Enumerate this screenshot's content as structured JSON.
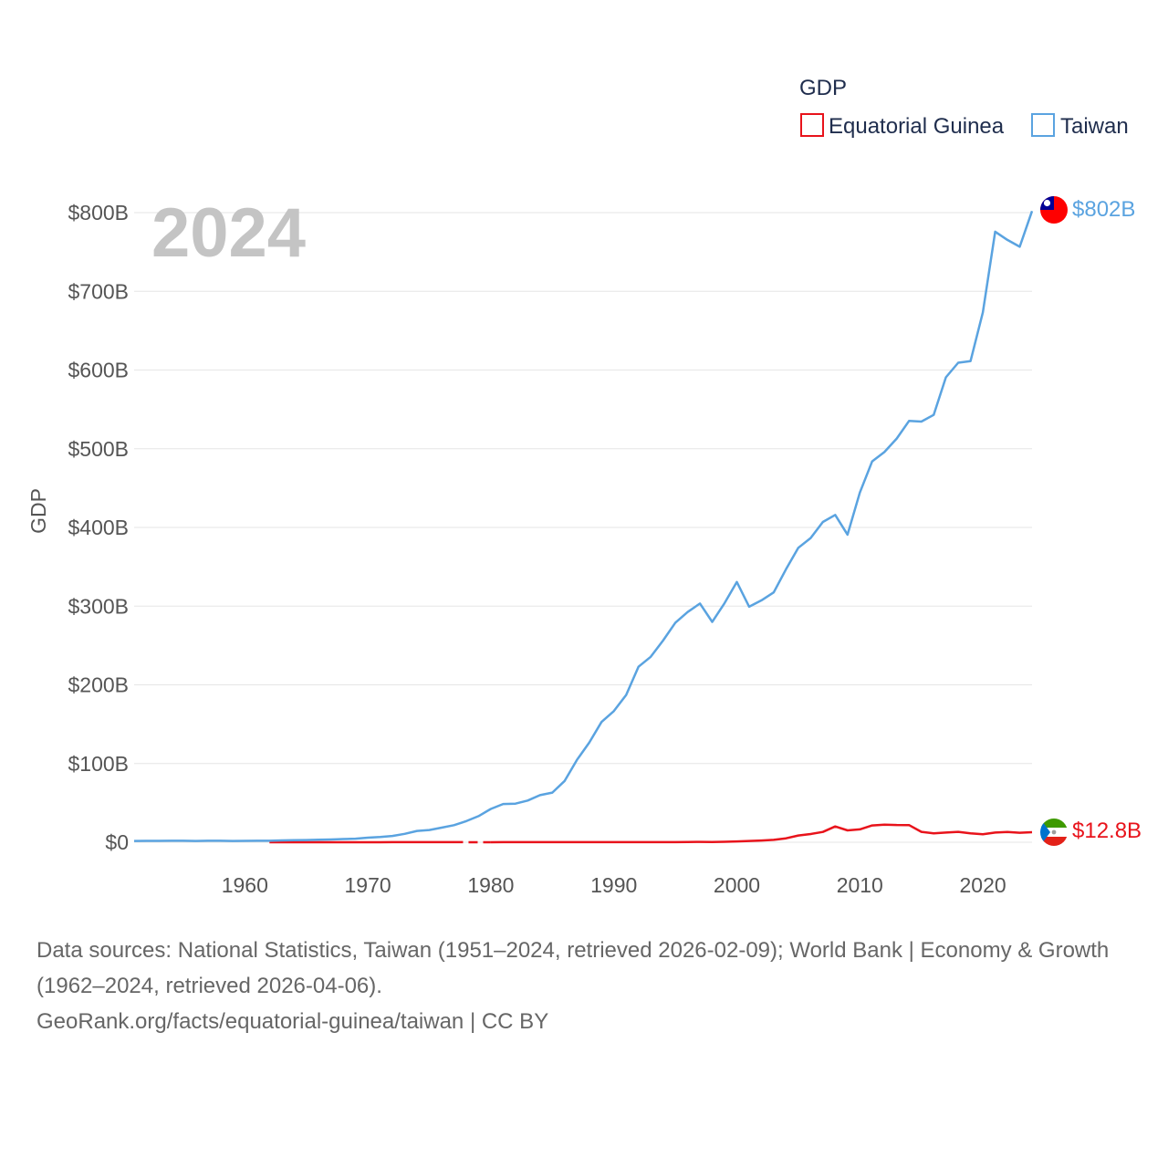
{
  "chart_data": {
    "type": "line",
    "title": "GDP",
    "ylabel": "GDP",
    "xlabel": "",
    "year_label": "2024",
    "xlim": [
      1951,
      2024
    ],
    "ylim": [
      0,
      800
    ],
    "x_ticks": [
      1960,
      1970,
      1980,
      1990,
      2000,
      2010,
      2020
    ],
    "x_tick_labels": [
      "1960",
      "1970",
      "1980",
      "1990",
      "2000",
      "2010",
      "2020"
    ],
    "y_ticks": [
      0,
      100,
      200,
      300,
      400,
      500,
      600,
      700,
      800
    ],
    "y_tick_labels": [
      "$0",
      "$100B",
      "$200B",
      "$300B",
      "$400B",
      "$500B",
      "$600B",
      "$700B",
      "$800B"
    ],
    "legend": {
      "title": "GDP",
      "position": "top-right"
    },
    "series": [
      {
        "name": "Equatorial Guinea",
        "color": "#e8131b",
        "end_label": "$12.8B",
        "flag": "equatorial-guinea-flag-icon",
        "x": [
          1962,
          1963,
          1964,
          1965,
          1966,
          1967,
          1968,
          1969,
          1970,
          1971,
          1972,
          1973,
          1974,
          1975,
          1976,
          1977,
          1978,
          1979,
          1980,
          1981,
          1982,
          1983,
          1984,
          1985,
          1986,
          1987,
          1988,
          1989,
          1990,
          1991,
          1992,
          1993,
          1994,
          1995,
          1996,
          1997,
          1998,
          1999,
          2000,
          2001,
          2002,
          2003,
          2004,
          2005,
          2006,
          2007,
          2008,
          2009,
          2010,
          2011,
          2012,
          2013,
          2014,
          2015,
          2016,
          2017,
          2018,
          2019,
          2020,
          2021,
          2022,
          2023,
          2024
        ],
        "values": [
          0.01,
          0.01,
          0.02,
          0.02,
          0.02,
          0.02,
          0.03,
          0.04,
          0.05,
          0.05,
          0.06,
          0.06,
          0.07,
          0.07,
          0.08,
          0.08,
          null,
          null,
          0.05,
          0.06,
          0.06,
          0.07,
          0.08,
          0.09,
          0.1,
          0.11,
          0.12,
          0.13,
          0.13,
          0.13,
          0.16,
          0.16,
          0.15,
          0.16,
          0.26,
          0.5,
          0.37,
          0.62,
          1.05,
          1.67,
          2.22,
          2.97,
          4.93,
          8.55,
          10.45,
          13.07,
          20.05,
          15.03,
          16.3,
          21.37,
          22.4,
          21.94,
          21.74,
          13.18,
          11.24,
          12.29,
          13.27,
          11.42,
          10.1,
          12.27,
          13.13,
          12.08,
          12.8
        ]
      },
      {
        "name": "Taiwan",
        "color": "#5aa3e0",
        "end_label": "$802B",
        "flag": "taiwan-flag-icon",
        "x": [
          1951,
          1952,
          1953,
          1954,
          1955,
          1956,
          1957,
          1958,
          1959,
          1960,
          1961,
          1962,
          1963,
          1964,
          1965,
          1966,
          1967,
          1968,
          1969,
          1970,
          1971,
          1972,
          1973,
          1974,
          1975,
          1976,
          1977,
          1978,
          1979,
          1980,
          1981,
          1982,
          1983,
          1984,
          1985,
          1986,
          1987,
          1988,
          1989,
          1990,
          1991,
          1992,
          1993,
          1994,
          1995,
          1996,
          1997,
          1998,
          1999,
          2000,
          2001,
          2002,
          2003,
          2004,
          2005,
          2006,
          2007,
          2008,
          2009,
          2010,
          2011,
          2012,
          2013,
          2014,
          2015,
          2016,
          2017,
          2018,
          2019,
          2020,
          2021,
          2022,
          2023,
          2024
        ],
        "values": [
          1.6,
          1.7,
          1.7,
          1.9,
          1.9,
          1.6,
          1.8,
          1.8,
          1.6,
          1.7,
          1.8,
          1.9,
          2.3,
          2.6,
          2.8,
          3.1,
          3.5,
          4.0,
          4.5,
          5.8,
          6.6,
          8.0,
          10.7,
          14.4,
          15.5,
          18.6,
          21.7,
          26.8,
          33.2,
          42.3,
          48.6,
          49.0,
          53.0,
          59.8,
          63.1,
          77.9,
          104.7,
          126.5,
          152.8,
          166.6,
          187.1,
          222.9,
          235.6,
          256.2,
          279.0,
          292.5,
          303.3,
          280.0,
          303.8,
          330.7,
          299.3,
          307.4,
          317.4,
          346.9,
          374.1,
          386.5,
          406.9,
          415.9,
          390.8,
          444.3,
          483.9,
          495.8,
          512.9,
          535.3,
          534.5,
          543.0,
          590.7,
          609.3,
          611.4,
          673.3,
          775.8,
          765.3,
          756.6,
          802.0
        ]
      }
    ]
  },
  "footer": {
    "sources": "Data sources: National Statistics, Taiwan (1951–2024, retrieved 2026-02-09); World Bank | Economy & Growth (1962–2024, retrieved 2026-04-06).",
    "credit": "GeoRank.org/facts/equatorial-guinea/taiwan | CC BY"
  }
}
